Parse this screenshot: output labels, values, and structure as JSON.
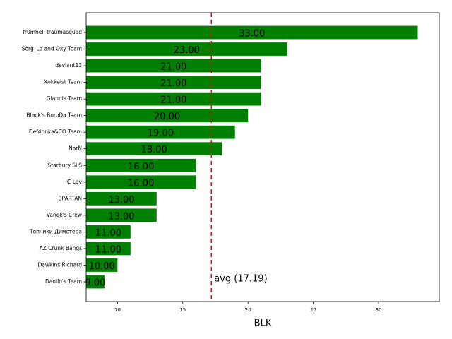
{
  "chart_data": {
    "type": "barh",
    "xlabel": "BLK",
    "categories": [
      "fr0mhell traumasquad",
      "Serg_Lo and Oxy Team",
      "deviant13",
      "Xokkeist Team",
      "Giannis Team",
      "Black's BoroDa Team",
      "Def4onka&CO Team",
      "NarN",
      "Starbury SLS",
      "C-Lav",
      "SPARTAN",
      "Vanek's Crew",
      "Топчики Димстера",
      "AZ Crunk Bangs",
      "Dawkins Richard",
      "Danilo's Team"
    ],
    "values": [
      33,
      23,
      21,
      21,
      21,
      20,
      19,
      18,
      16,
      16,
      13,
      13,
      11,
      11,
      10,
      9
    ],
    "value_labels": [
      "33.00",
      "23.00",
      "21.00",
      "21.00",
      "21.00",
      "20.00",
      "19.00",
      "18.00",
      "16.00",
      "16.00",
      "13.00",
      "13.00",
      "11.00",
      "11.00",
      "10.00",
      "9.00"
    ],
    "color": "#008000",
    "xlim": [
      7.6,
      34.65
    ],
    "xticks": [
      10,
      15,
      20,
      25,
      30
    ],
    "avg_line": {
      "value": 17.19,
      "label": "avg (17.19)",
      "color": "#ff0000"
    }
  }
}
